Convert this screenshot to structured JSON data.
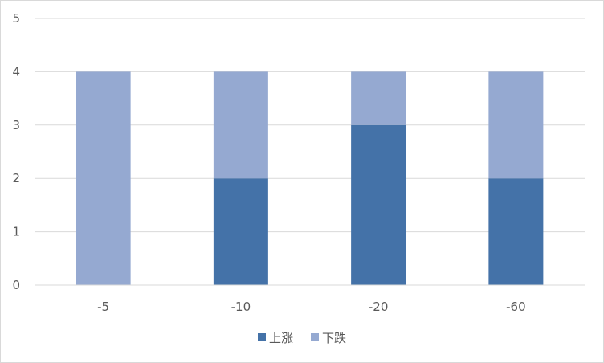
{
  "chart_data": {
    "type": "bar",
    "stacked": true,
    "categories": [
      "-5",
      "-10",
      "-20",
      "-60"
    ],
    "series": [
      {
        "name": "上涨",
        "values": [
          0,
          2,
          3,
          2
        ],
        "color": "#4472a8"
      },
      {
        "name": "下跌",
        "values": [
          4,
          2,
          1,
          2
        ],
        "color": "#95a9d1"
      }
    ],
    "ylim": [
      0,
      5
    ],
    "yticks": [
      "0",
      "1",
      "2",
      "3",
      "4",
      "5"
    ],
    "grid": true,
    "legend": "bottom",
    "title": "",
    "xlabel": "",
    "ylabel": ""
  }
}
